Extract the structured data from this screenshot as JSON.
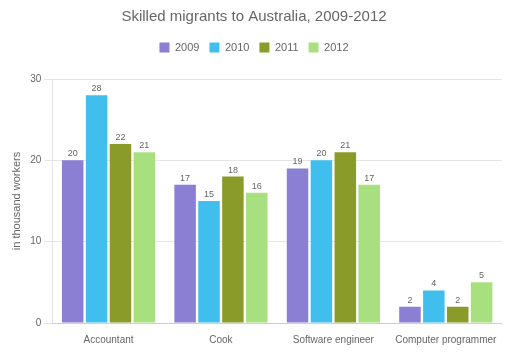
{
  "chart_data": {
    "type": "bar",
    "title": "Skilled migrants to Australia, 2009-2012",
    "ylabel": "in thousand workers",
    "categories": [
      "Accountant",
      "Cook",
      "Software engineer",
      "Computer programmer"
    ],
    "series": [
      {
        "name": "2009",
        "color": "#8B7FD4",
        "values": [
          20,
          17,
          19,
          2
        ]
      },
      {
        "name": "2010",
        "color": "#40BFEF",
        "values": [
          28,
          15,
          20,
          4
        ]
      },
      {
        "name": "2011",
        "color": "#8B9B2A",
        "values": [
          22,
          18,
          21,
          2
        ]
      },
      {
        "name": "2012",
        "color": "#A8E080",
        "values": [
          21,
          16,
          17,
          5
        ]
      }
    ],
    "ylim": [
      0,
      30
    ],
    "yticks": [
      0,
      10,
      20,
      30
    ],
    "grid": true,
    "legend": "top",
    "data_labels": true
  }
}
